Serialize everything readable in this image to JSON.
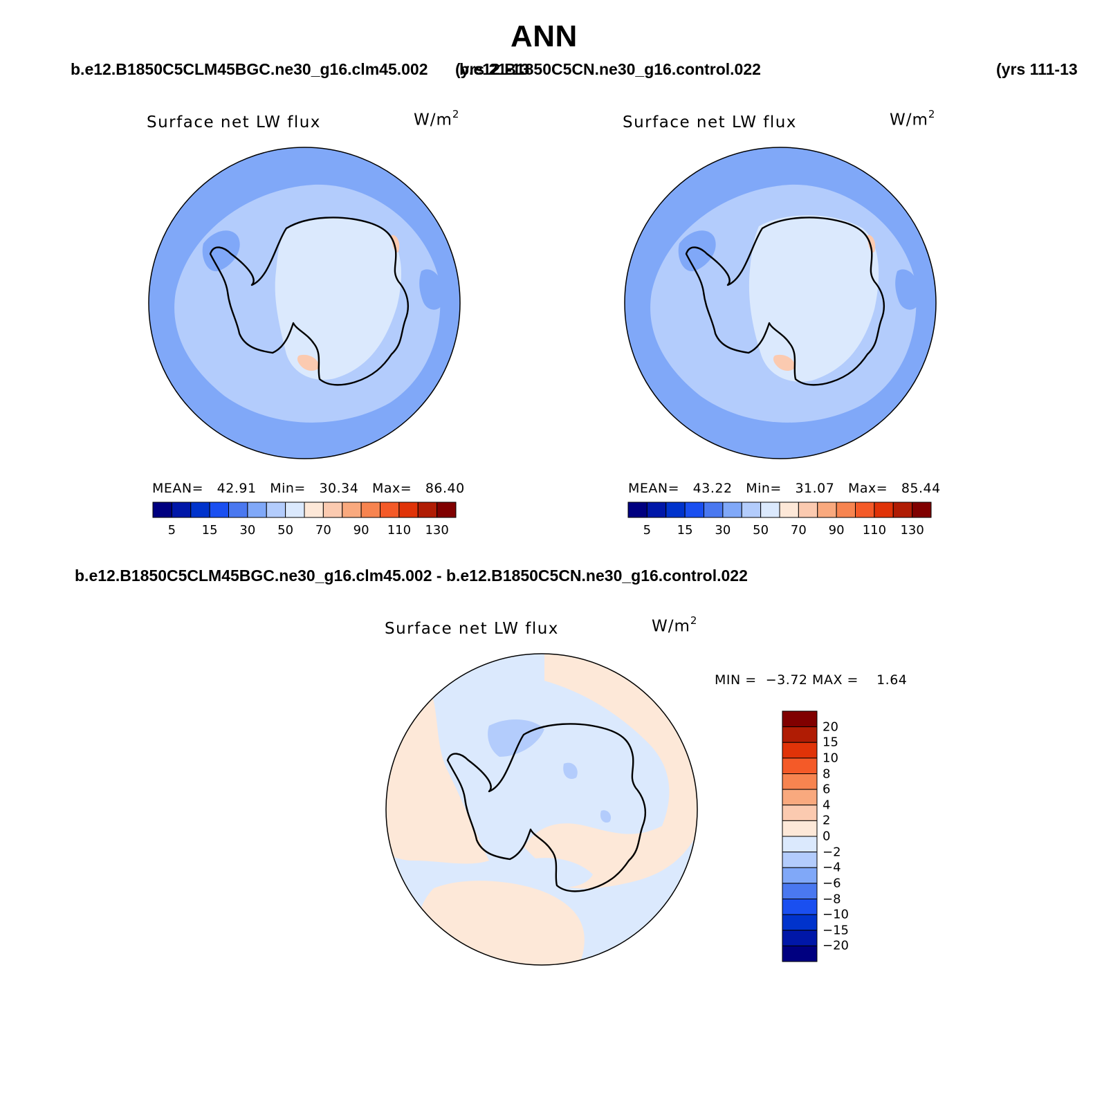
{
  "title": "ANN",
  "header": {
    "case1": "b.e12.B1850C5CLM45BGC.ne30_g16.clm45.002",
    "years1": "(yrs 21-13",
    "case2": "b.e12.B1850C5CN.ne30_g16.control.022",
    "years2": "(yrs 111-13"
  },
  "panels": [
    {
      "plot_label": "Surface net LW flux",
      "units_base": "W/m",
      "units_exp": "2",
      "mean_label": "MEAN=",
      "mean_value": "42.91",
      "min_label": "Min=",
      "min_value": "30.34",
      "max_label": "Max=",
      "max_value": "86.40"
    },
    {
      "plot_label": "Surface net LW flux",
      "units_base": "W/m",
      "units_exp": "2",
      "mean_label": "MEAN=",
      "mean_value": "43.22",
      "min_label": "Min=",
      "min_value": "31.07",
      "max_label": "Max=",
      "max_value": "85.44"
    }
  ],
  "abs_colorbar": {
    "colors": [
      "#000080",
      "#0017a8",
      "#0033cc",
      "#1a4ff0",
      "#4a78f0",
      "#80a8f8",
      "#b3ccfc",
      "#dbe9fd",
      "#fde8d8",
      "#fbcab0",
      "#f9a97e",
      "#f78450",
      "#f45a28",
      "#e03308",
      "#b01c04",
      "#800000"
    ],
    "tick_labels": [
      "5",
      "15",
      "30",
      "50",
      "70",
      "90",
      "110",
      "130"
    ]
  },
  "diff": {
    "title": "b.e12.B1850C5CLM45BGC.ne30_g16.clm45.002 - b.e12.B1850C5CN.ne30_g16.control.022",
    "plot_label": "Surface net LW flux",
    "units_base": "W/m",
    "units_exp": "2",
    "min_label": "MIN =",
    "min_value": "−3.72",
    "max_label": "MAX =",
    "max_value": "1.64",
    "colorbar": {
      "colors": [
        "#800000",
        "#b01c04",
        "#e03308",
        "#f45a28",
        "#f78450",
        "#f9a97e",
        "#fde8d8",
        "#dbe9fd",
        "#b3ccfc",
        "#80a8f8",
        "#4a78f0",
        "#1a4ff0",
        "#0033cc",
        "#0017a8",
        "#000080"
      ],
      "tick_labels": [
        "20",
        "15",
        "10",
        "8",
        "6",
        "4",
        "2",
        "0",
        "−2",
        "−4",
        "−6",
        "−8",
        "−10",
        "−15",
        "−20"
      ]
    }
  },
  "map_colors": {
    "ocean_outer": "#80a8f8",
    "ocean_mid": "#b3ccfc",
    "ice_light": "#dbe9fd",
    "warm_patch": "#fbcab0",
    "diff_cool": "#dbe9fd",
    "diff_warm": "#fde8d8",
    "diff_cool2": "#b3ccfc"
  }
}
